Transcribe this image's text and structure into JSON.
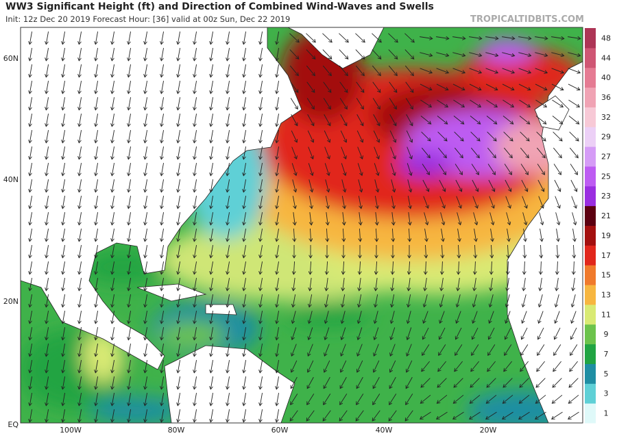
{
  "header": {
    "title": "WW3 Significant Height (ft) and Direction of Combined Wind-Waves and Swells",
    "subtitle": "Init: 12z Dec 20 2019   Forecast Hour: [36]   valid at 00z Sun, Dec 22 2019",
    "credit": "TROPICALTIDBITS.COM"
  },
  "map": {
    "lat_labels": [
      "60N",
      "40N",
      "20N",
      "EQ"
    ],
    "lon_labels": [
      "100W",
      "80W",
      "60W",
      "40W",
      "20W"
    ]
  },
  "colorbar": {
    "labels": [
      "1",
      "3",
      "5",
      "7",
      "9",
      "11",
      "13",
      "15",
      "17",
      "19",
      "21",
      "23",
      "25",
      "27",
      "29",
      "32",
      "36",
      "40",
      "44",
      "48"
    ],
    "colors": [
      "#dff9f9",
      "#5fd0d6",
      "#1f8ea3",
      "#21a443",
      "#6cc34c",
      "#d9ea74",
      "#f7b640",
      "#f07a2c",
      "#e1271c",
      "#a3100f",
      "#5c0010",
      "#9a2ee0",
      "#bd5cf2",
      "#d59cf6",
      "#ecd0f6",
      "#f7c9d6",
      "#f0a3b4",
      "#e57b93",
      "#cf5674",
      "#ad3556"
    ]
  }
}
